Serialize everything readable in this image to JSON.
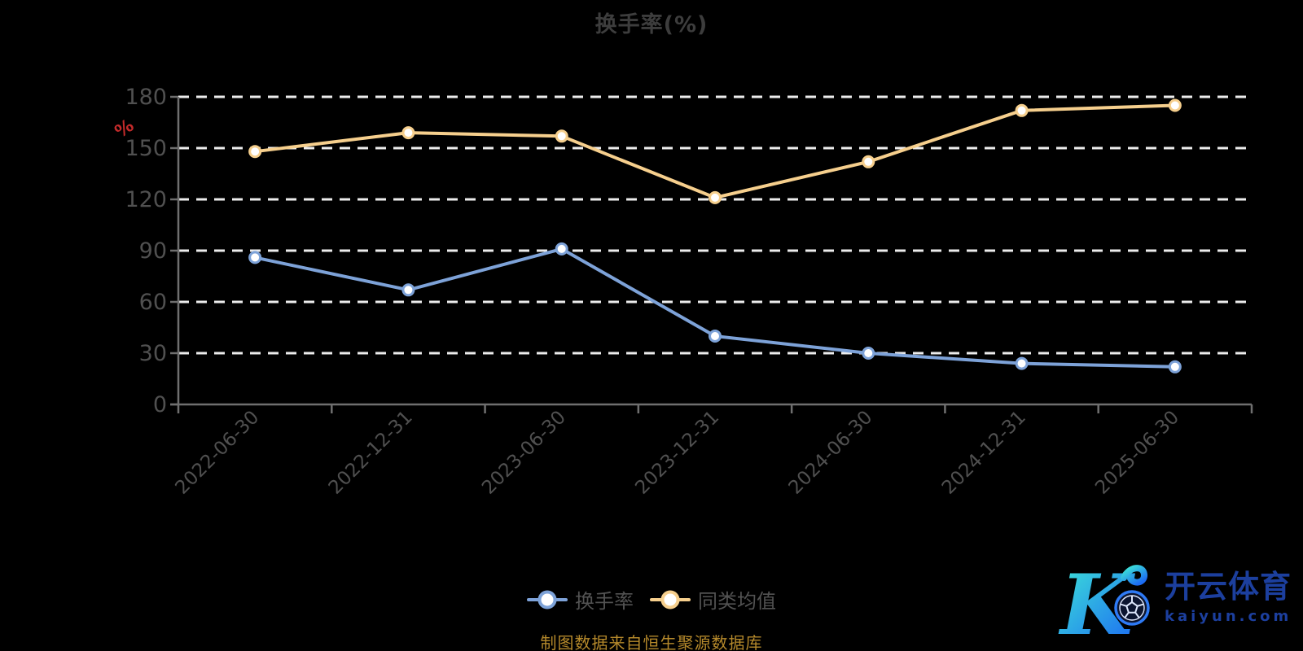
{
  "page": {
    "background": "#000000"
  },
  "chart_data": {
    "type": "line",
    "title": "换手率(%)",
    "y_axis_unit_label": "%",
    "categories": [
      "2022-06-30",
      "2022-12-31",
      "2023-06-30",
      "2023-12-31",
      "2024-06-30",
      "2024-12-31",
      "2025-06-30"
    ],
    "series": [
      {
        "name": "换手率",
        "color": "#7da2d8",
        "marker": "circle",
        "values": [
          86,
          67,
          91,
          40,
          30,
          24,
          22
        ]
      },
      {
        "name": "同类均值",
        "color": "#f6cf8d",
        "marker": "circle",
        "values": [
          148,
          159,
          157,
          121,
          142,
          172,
          175
        ]
      }
    ],
    "ylim": [
      0,
      180
    ],
    "yticks": [
      0,
      30,
      60,
      90,
      120,
      150,
      180
    ],
    "grid": "horizontal white dashed lines",
    "legend_position": "bottom-center",
    "x_label_rotation_deg": -45
  },
  "caption": {
    "text": "制图数据来自恒生聚源数据库",
    "color": "#b5892b"
  },
  "watermark": {
    "monogram": "K",
    "brand": "开云体育",
    "domain": "kaiyun.com",
    "brand_color": "#1c3f9e",
    "monogram_gradient": [
      "#3fe9d6",
      "#1c6cf3"
    ]
  },
  "colors": {
    "title": "#3d3d3d",
    "tick_label": "#505050",
    "axis_line": "#6f6f6f",
    "grid_line": "#ececec",
    "legend_text": "#525252",
    "unit_label": "#c42b2b",
    "marker_fill": "#ffffff"
  }
}
